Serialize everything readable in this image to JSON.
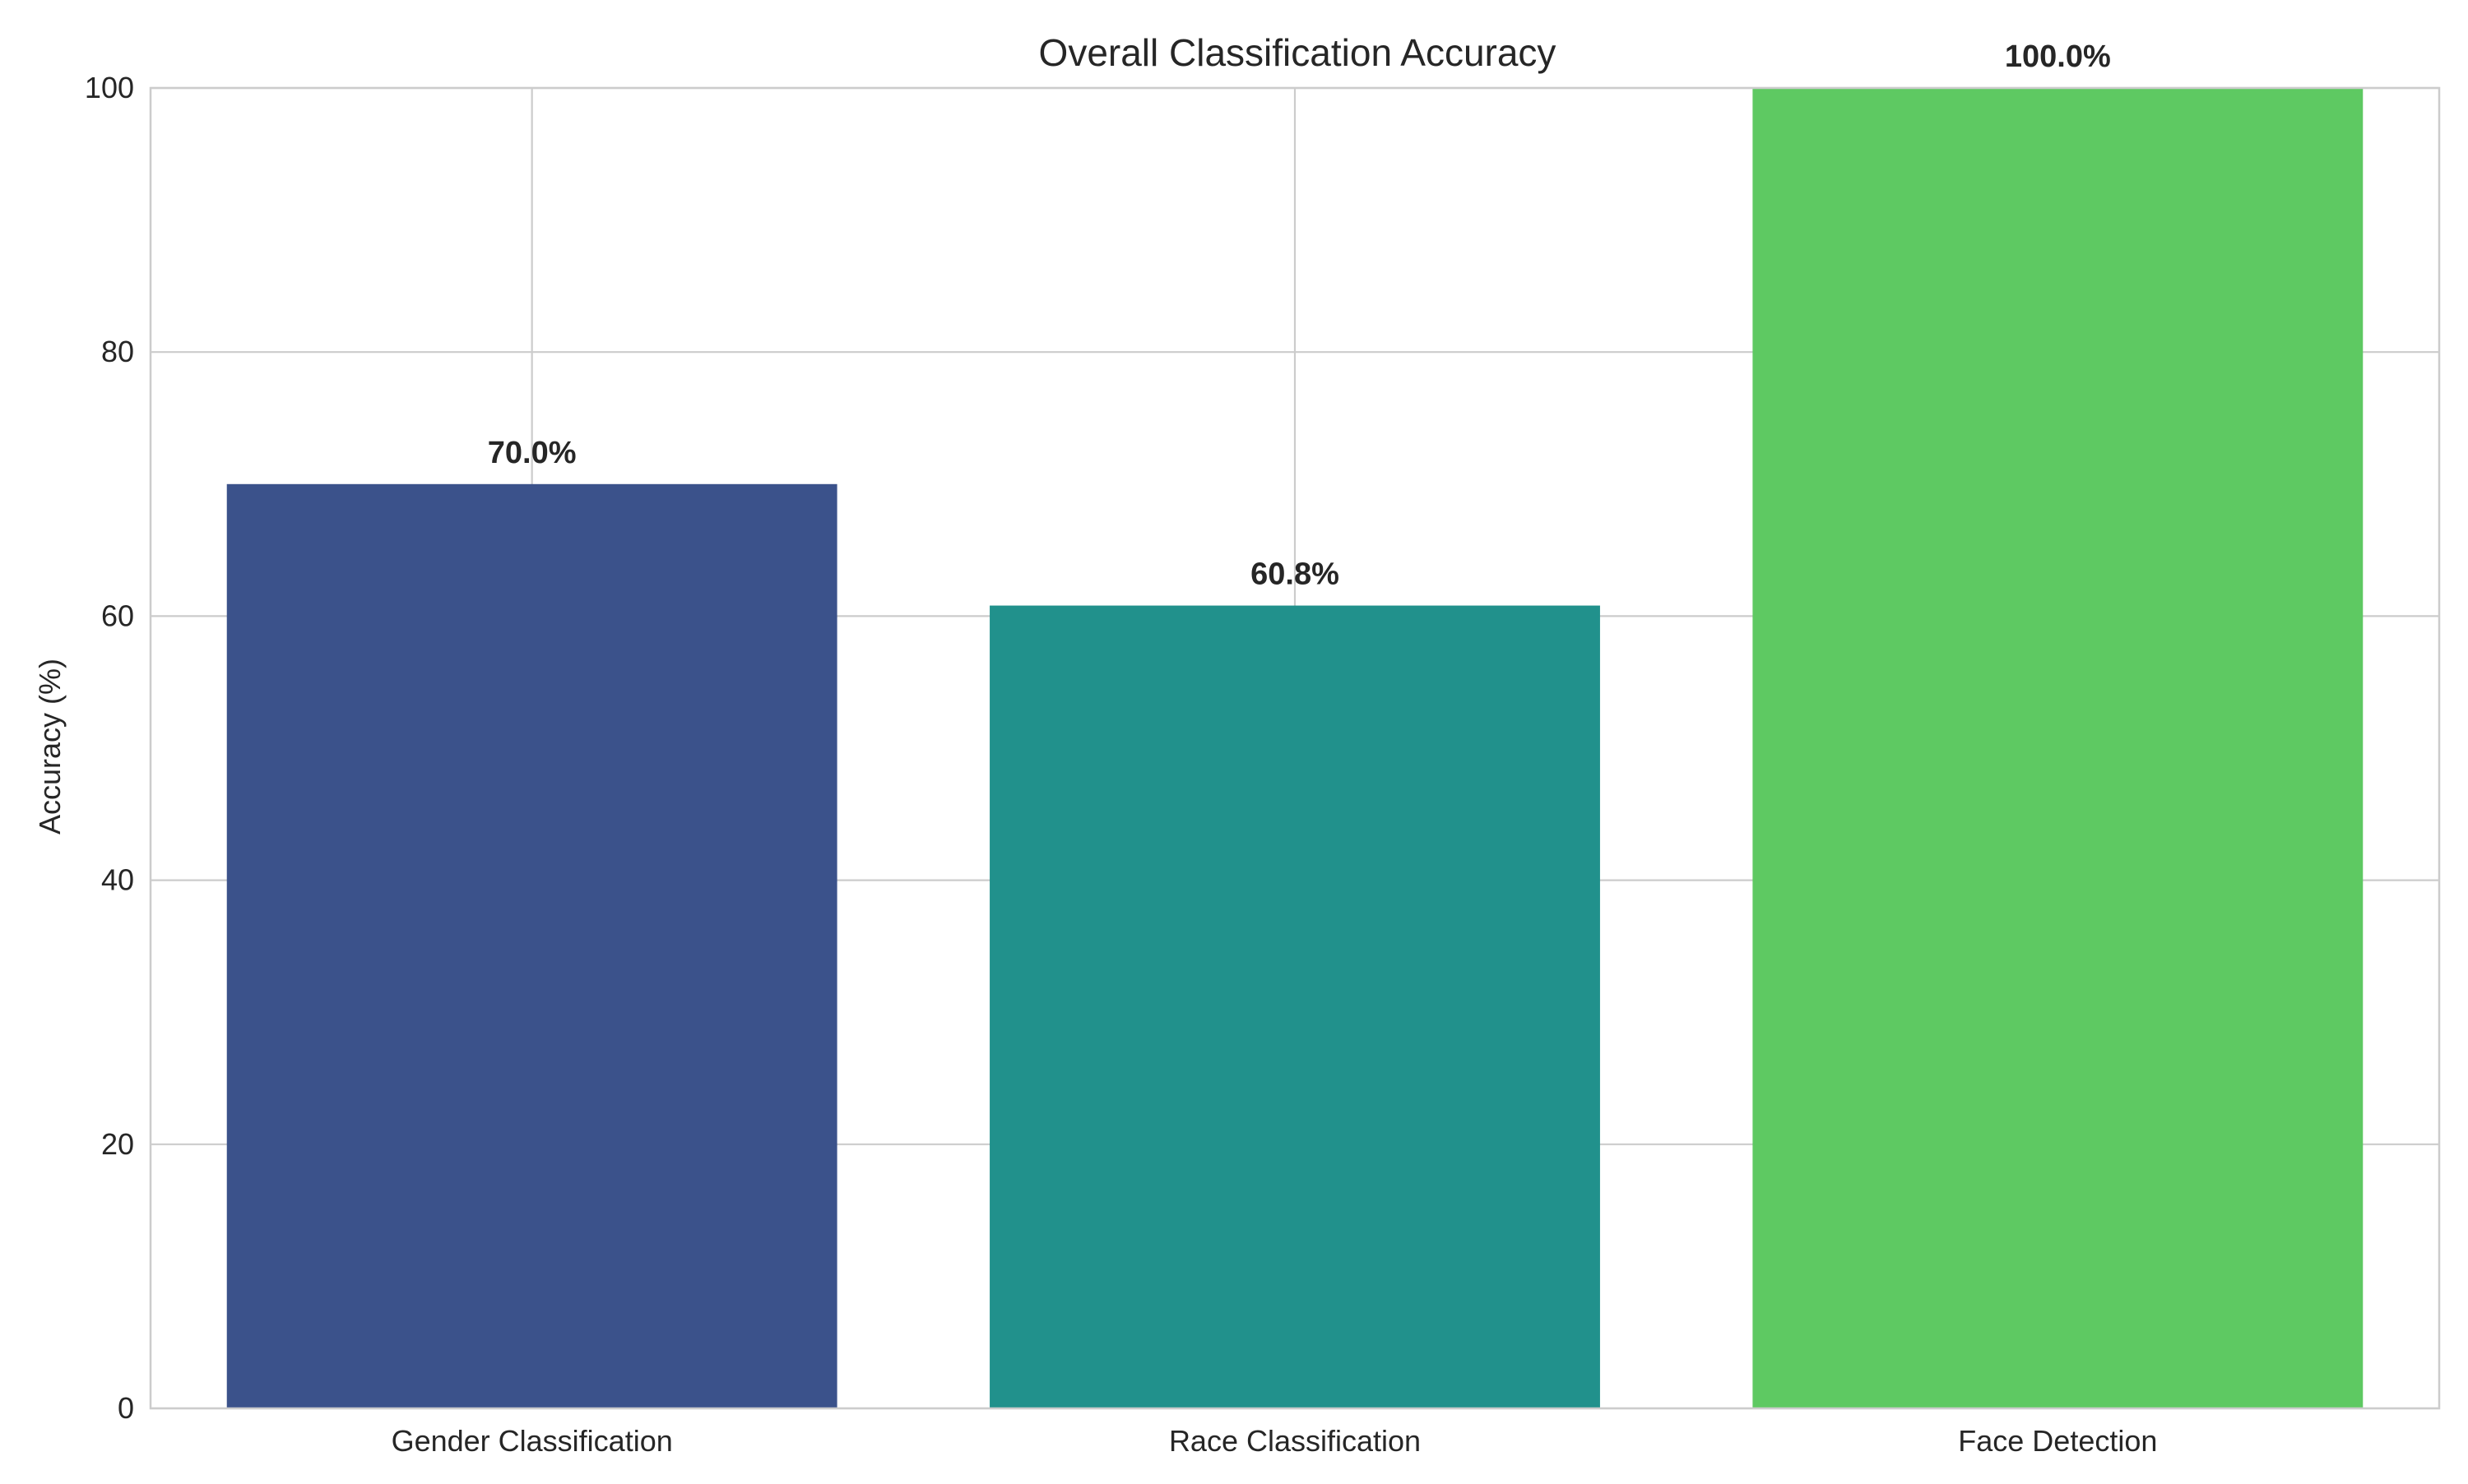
{
  "chart_data": {
    "type": "bar",
    "title": "Overall Classification Accuracy",
    "xlabel": "",
    "ylabel": "Accuracy (%)",
    "categories": [
      "Gender Classification",
      "Race Classification",
      "Face Detection"
    ],
    "values": [
      70.0,
      60.8,
      100.0
    ],
    "value_labels": [
      "70.0%",
      "60.8%",
      "100.0%"
    ],
    "colors": [
      "#3b528b",
      "#21918c",
      "#5ec962"
    ],
    "ylim": [
      0,
      100
    ],
    "yticks": [
      0,
      20,
      40,
      60,
      80,
      100
    ],
    "grid": true,
    "legend": "none"
  }
}
